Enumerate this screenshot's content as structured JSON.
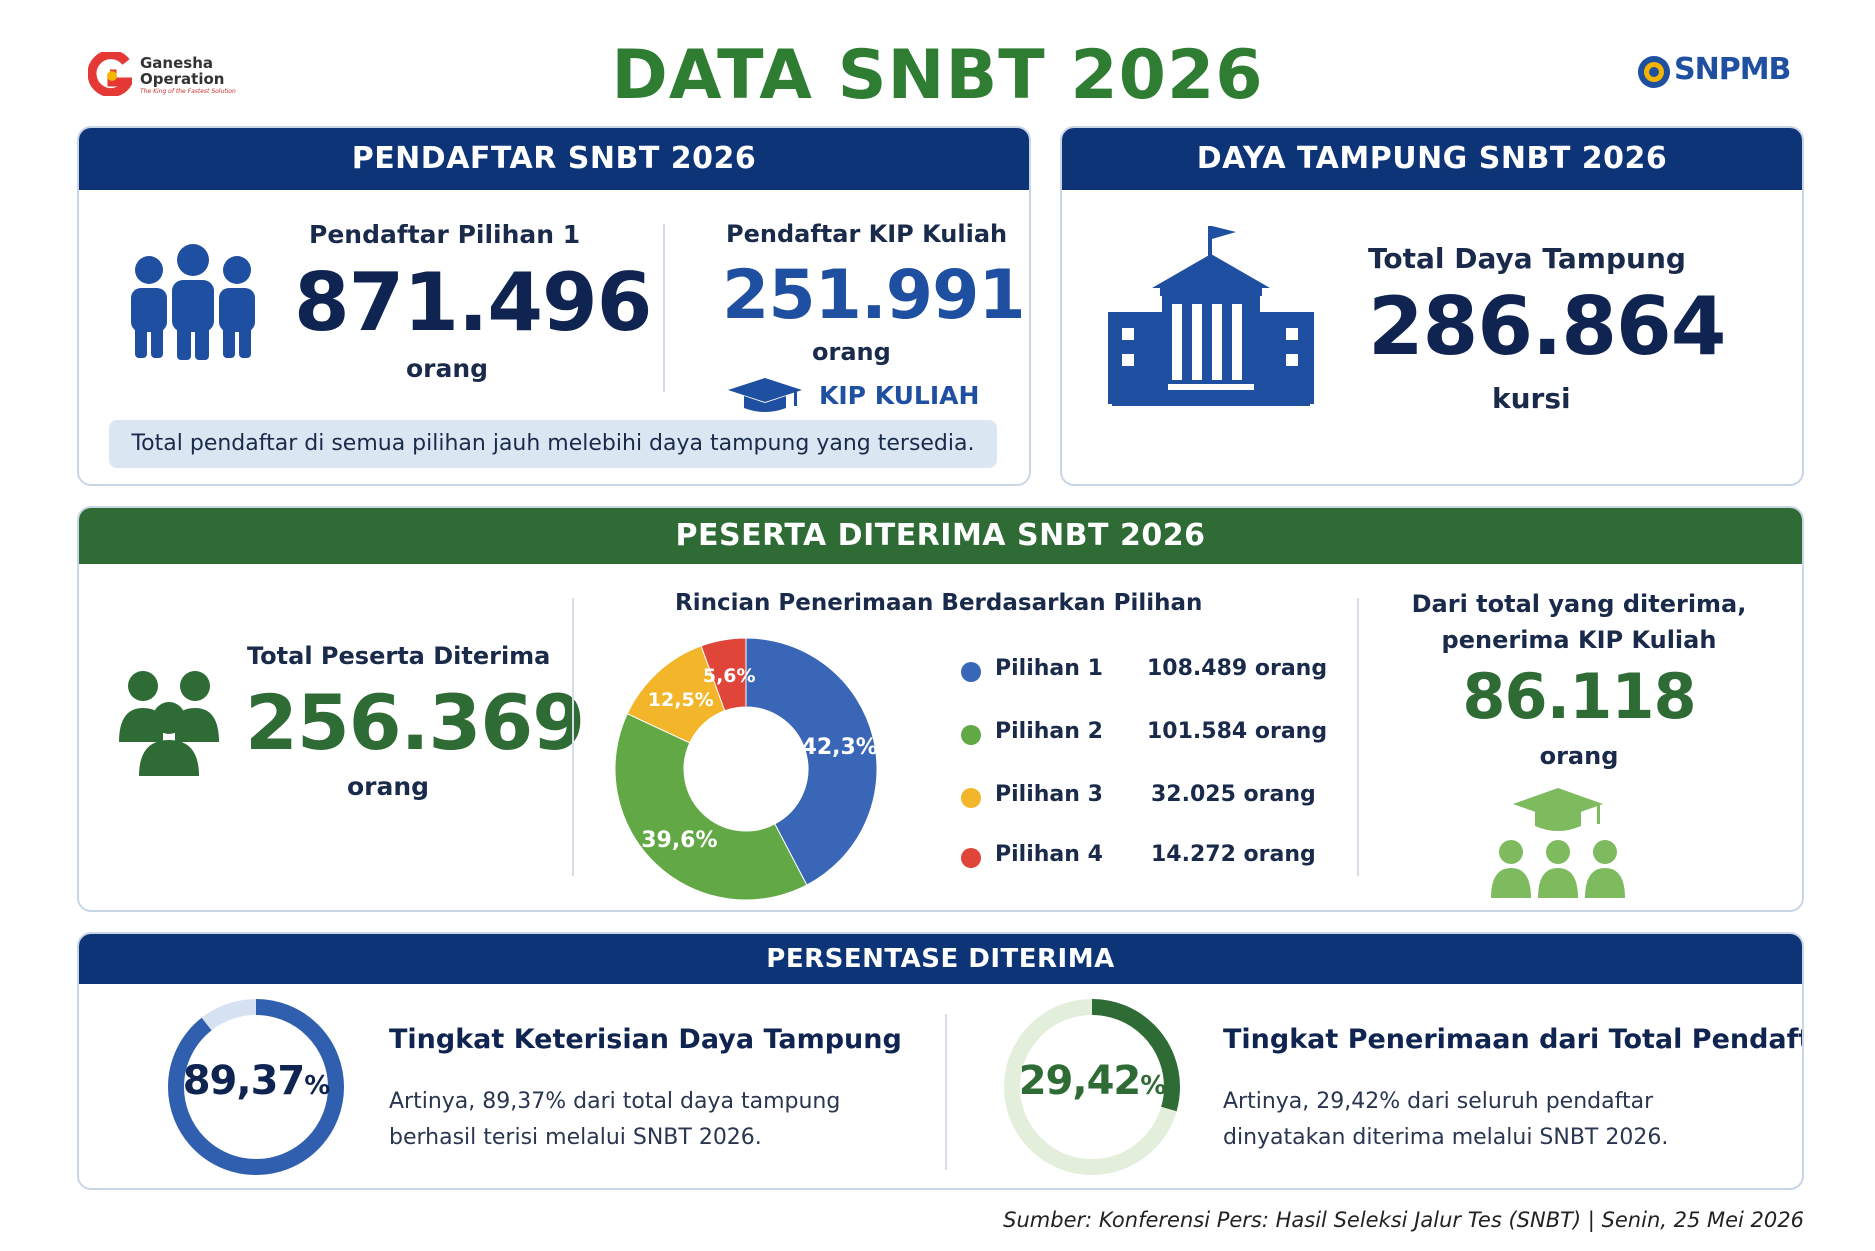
{
  "header": {
    "title": "DATA SNBT 2026",
    "logo_left_line1": "Ganesha",
    "logo_left_line2": "Operation",
    "logo_left_tagline": "The King of the Fastest Solution",
    "logo_right_text": "SNPMB"
  },
  "pendaftar": {
    "heading": "PENDAFTAR SNBT 2026",
    "pilihan1_label": "Pendaftar Pilihan 1",
    "pilihan1_value": "871.496",
    "pilihan1_unit": "orang",
    "kip_label": "Pendaftar KIP Kuliah",
    "kip_value": "251.991",
    "kip_unit": "orang",
    "kip_badge": "KIP KULIAH",
    "note": "Total pendaftar di semua pilihan jauh melebihi daya tampung yang tersedia."
  },
  "daya_tampung": {
    "heading": "DAYA TAMPUNG SNBT 2026",
    "label": "Total Daya Tampung",
    "value": "286.864",
    "unit": "kursi"
  },
  "diterima": {
    "heading": "PESERTA DITERIMA SNBT 2026",
    "total_label": "Total Peserta Diterima",
    "total_value": "256.369",
    "total_unit": "orang",
    "chart_title": "Rincian Penerimaan Berdasarkan Pilihan",
    "kip_line1": "Dari total yang diterima,",
    "kip_line2": "penerima KIP Kuliah",
    "kip_value": "86.118",
    "kip_unit": "orang"
  },
  "persentase": {
    "heading": "PERSENTASE DITERIMA",
    "ring1_value": "89,37",
    "ring1_unit": "%",
    "ring1_fraction": 0.8937,
    "ring1_title": "Tingkat Keterisian Daya Tampung",
    "ring1_desc_line1": "Artinya, 89,37% dari total daya tampung",
    "ring1_desc_line2": "berhasil terisi melalui SNBT 2026.",
    "ring2_value": "29,42",
    "ring2_unit": "%",
    "ring2_fraction": 0.2942,
    "ring2_title": "Tingkat Penerimaan dari Total Pendaftar",
    "ring2_desc_line1": "Artinya, 29,42% dari seluruh pendaftar",
    "ring2_desc_line2": "dinyatakan diterima melalui SNBT 2026."
  },
  "source": "Sumber: Konferensi Pers: Hasil Seleksi Jalur Tes (SNBT) | Senin, 25 Mei 2026",
  "colors": {
    "navy": "#0d3477",
    "green": "#2e6b35",
    "title_green": "#2e7d32",
    "blue_number": "#1e4fa0"
  },
  "chart_data": {
    "type": "pie",
    "title": "Rincian Penerimaan Berdasarkan Pilihan",
    "categories": [
      "Pilihan 1",
      "Pilihan 2",
      "Pilihan 3",
      "Pilihan 4"
    ],
    "values": [
      108489,
      101584,
      32025,
      14272
    ],
    "value_labels": [
      "108.489 orang",
      "101.584 orang",
      "32.025 orang",
      "14.272 orang"
    ],
    "percent_labels": [
      "42,3%",
      "39,6%",
      "12,5%",
      "5,6%"
    ],
    "colors": [
      "#3a66b8",
      "#62a845",
      "#f3b62a",
      "#e0453a"
    ],
    "legend_position": "right"
  }
}
